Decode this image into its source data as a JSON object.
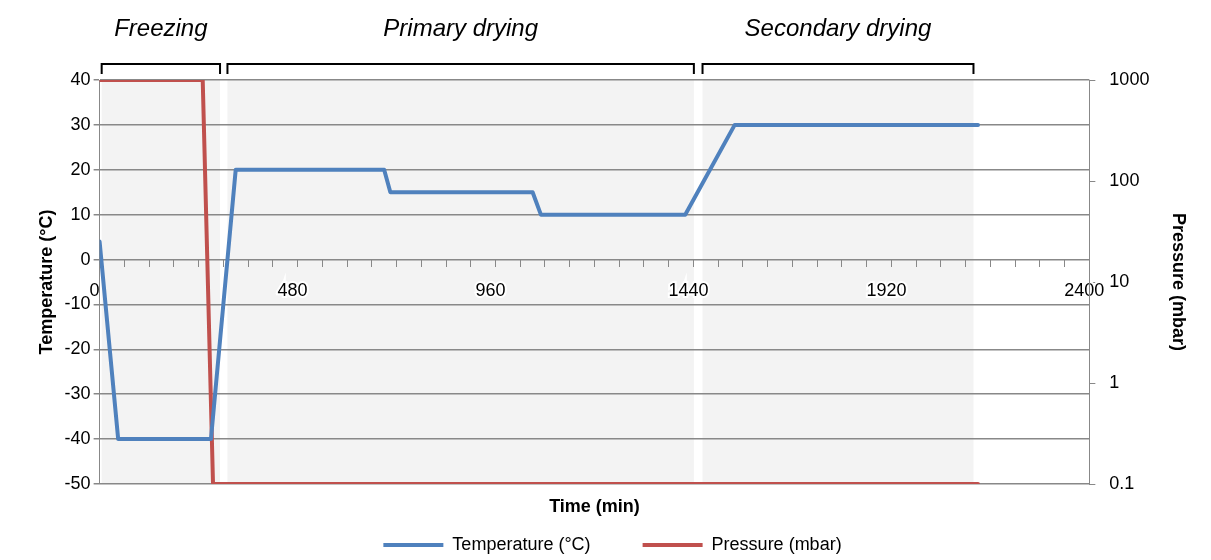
{
  "chart_data": {
    "type": "line",
    "xlabel": "Time (min)",
    "ylabel": "Temperature (°C)",
    "y2label": "Pressure (mbar)",
    "xlim": [
      0,
      2400
    ],
    "xticks": [
      0,
      {
        "value": 60,
        "label": null
      },
      {
        "value": 120,
        "label": null
      },
      {
        "value": 180,
        "label": null
      },
      {
        "value": 240,
        "label": null
      },
      {
        "value": 300,
        "label": null
      },
      {
        "value": 360,
        "label": null
      },
      {
        "value": 420,
        "label": null
      },
      480,
      {
        "value": 540,
        "label": null
      },
      {
        "value": 600,
        "label": null
      },
      {
        "value": 660,
        "label": null
      },
      {
        "value": 720,
        "label": null
      },
      {
        "value": 780,
        "label": null
      },
      {
        "value": 840,
        "label": null
      },
      {
        "value": 900,
        "label": null
      },
      960,
      {
        "value": 1020,
        "label": null
      },
      {
        "value": 1080,
        "label": null
      },
      {
        "value": 1140,
        "label": null
      },
      {
        "value": 1200,
        "label": null
      },
      {
        "value": 1260,
        "label": null
      },
      {
        "value": 1320,
        "label": null
      },
      {
        "value": 1380,
        "label": null
      },
      1440,
      {
        "value": 1500,
        "label": null
      },
      {
        "value": 1560,
        "label": null
      },
      {
        "value": 1620,
        "label": null
      },
      {
        "value": 1680,
        "label": null
      },
      {
        "value": 1740,
        "label": null
      },
      {
        "value": 1800,
        "label": null
      },
      {
        "value": 1860,
        "label": null
      },
      1920,
      {
        "value": 1980,
        "label": null
      },
      {
        "value": 2040,
        "label": null
      },
      {
        "value": 2100,
        "label": null
      },
      {
        "value": 2160,
        "label": null
      },
      {
        "value": 2220,
        "label": null
      },
      {
        "value": 2280,
        "label": null
      },
      {
        "value": 2340,
        "label": null
      },
      2400
    ],
    "ylim": [
      -50,
      40
    ],
    "yticks": [
      -50,
      -40,
      -30,
      -20,
      -10,
      0,
      10,
      20,
      30,
      40
    ],
    "y2lim": [
      0.1,
      1000
    ],
    "y2ticks": [
      0.1,
      1,
      10,
      100,
      1000
    ],
    "log": "y2",
    "grid": "y",
    "legend": "bottom",
    "marker": "none",
    "line_style": "solid",
    "series": [
      {
        "name": "Temperature (°C)",
        "color": "#4f81bd",
        "x": [
          0,
          45,
          270,
          330,
          690,
          705,
          1050,
          1070,
          1420,
          1540,
          2130
        ],
        "values": [
          4,
          -40,
          -40,
          20,
          20,
          15,
          15,
          10,
          10,
          30,
          30
        ]
      },
      {
        "name": "Pressure (mbar)",
        "color": "#c0504d",
        "axis": "y2",
        "x": [
          0,
          250,
          275,
          2130
        ],
        "values": [
          1000,
          1000,
          0.1,
          0.1
        ]
      }
    ],
    "bands": [
      {
        "axis": "x",
        "from": 5,
        "to": 292,
        "label": "Freezing",
        "color": "#f3f3f3"
      },
      {
        "axis": "x",
        "from": 310,
        "to": 1441,
        "label": "Primary drying",
        "color": "#f3f3f3"
      },
      {
        "axis": "x",
        "from": 1462,
        "to": 2119,
        "label": "Secondary drying",
        "color": "#f3f3f3"
      }
    ]
  }
}
